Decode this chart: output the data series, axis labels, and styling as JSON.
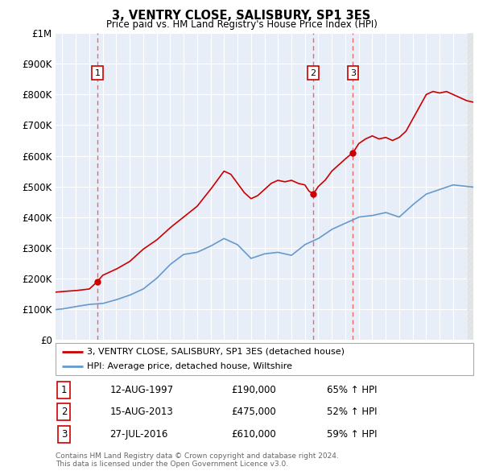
{
  "title": "3, VENTRY CLOSE, SALISBURY, SP1 3ES",
  "subtitle": "Price paid vs. HM Land Registry's House Price Index (HPI)",
  "legend_line1": "3, VENTRY CLOSE, SALISBURY, SP1 3ES (detached house)",
  "legend_line2": "HPI: Average price, detached house, Wiltshire",
  "footer1": "Contains HM Land Registry data © Crown copyright and database right 2024.",
  "footer2": "This data is licensed under the Open Government Licence v3.0.",
  "sales": [
    {
      "num": 1,
      "date": "12-AUG-1997",
      "price": "£190,000",
      "hpi": "65% ↑ HPI",
      "year": 1997.62,
      "price_val": 190000
    },
    {
      "num": 2,
      "date": "15-AUG-2013",
      "price": "£475,000",
      "hpi": "52% ↑ HPI",
      "year": 2013.62,
      "price_val": 475000
    },
    {
      "num": 3,
      "date": "27-JUL-2016",
      "price": "£610,000",
      "hpi": "59% ↑ HPI",
      "year": 2016.57,
      "price_val": 610000
    }
  ],
  "red_line_color": "#cc0000",
  "blue_line_color": "#6699cc",
  "sale_dot_color": "#cc0000",
  "dashed_line_color": "#ee6666",
  "plot_bg_color": "#e8eef8",
  "grid_color": "#ffffff",
  "hatch_color": "#cccccc",
  "ylim": [
    0,
    1000000
  ],
  "xlim_start": 1994.5,
  "xlim_end": 2025.5,
  "yticks": [
    0,
    100000,
    200000,
    300000,
    400000,
    500000,
    600000,
    700000,
    800000,
    900000,
    1000000
  ],
  "ytick_labels": [
    "£0",
    "£100K",
    "£200K",
    "£300K",
    "£400K",
    "£500K",
    "£600K",
    "£700K",
    "£800K",
    "£900K",
    "£1M"
  ],
  "xticks": [
    1995,
    1996,
    1997,
    1998,
    1999,
    2000,
    2001,
    2002,
    2003,
    2004,
    2005,
    2006,
    2007,
    2008,
    2009,
    2010,
    2011,
    2012,
    2013,
    2014,
    2015,
    2016,
    2017,
    2018,
    2019,
    2020,
    2021,
    2022,
    2023,
    2024,
    2025
  ]
}
